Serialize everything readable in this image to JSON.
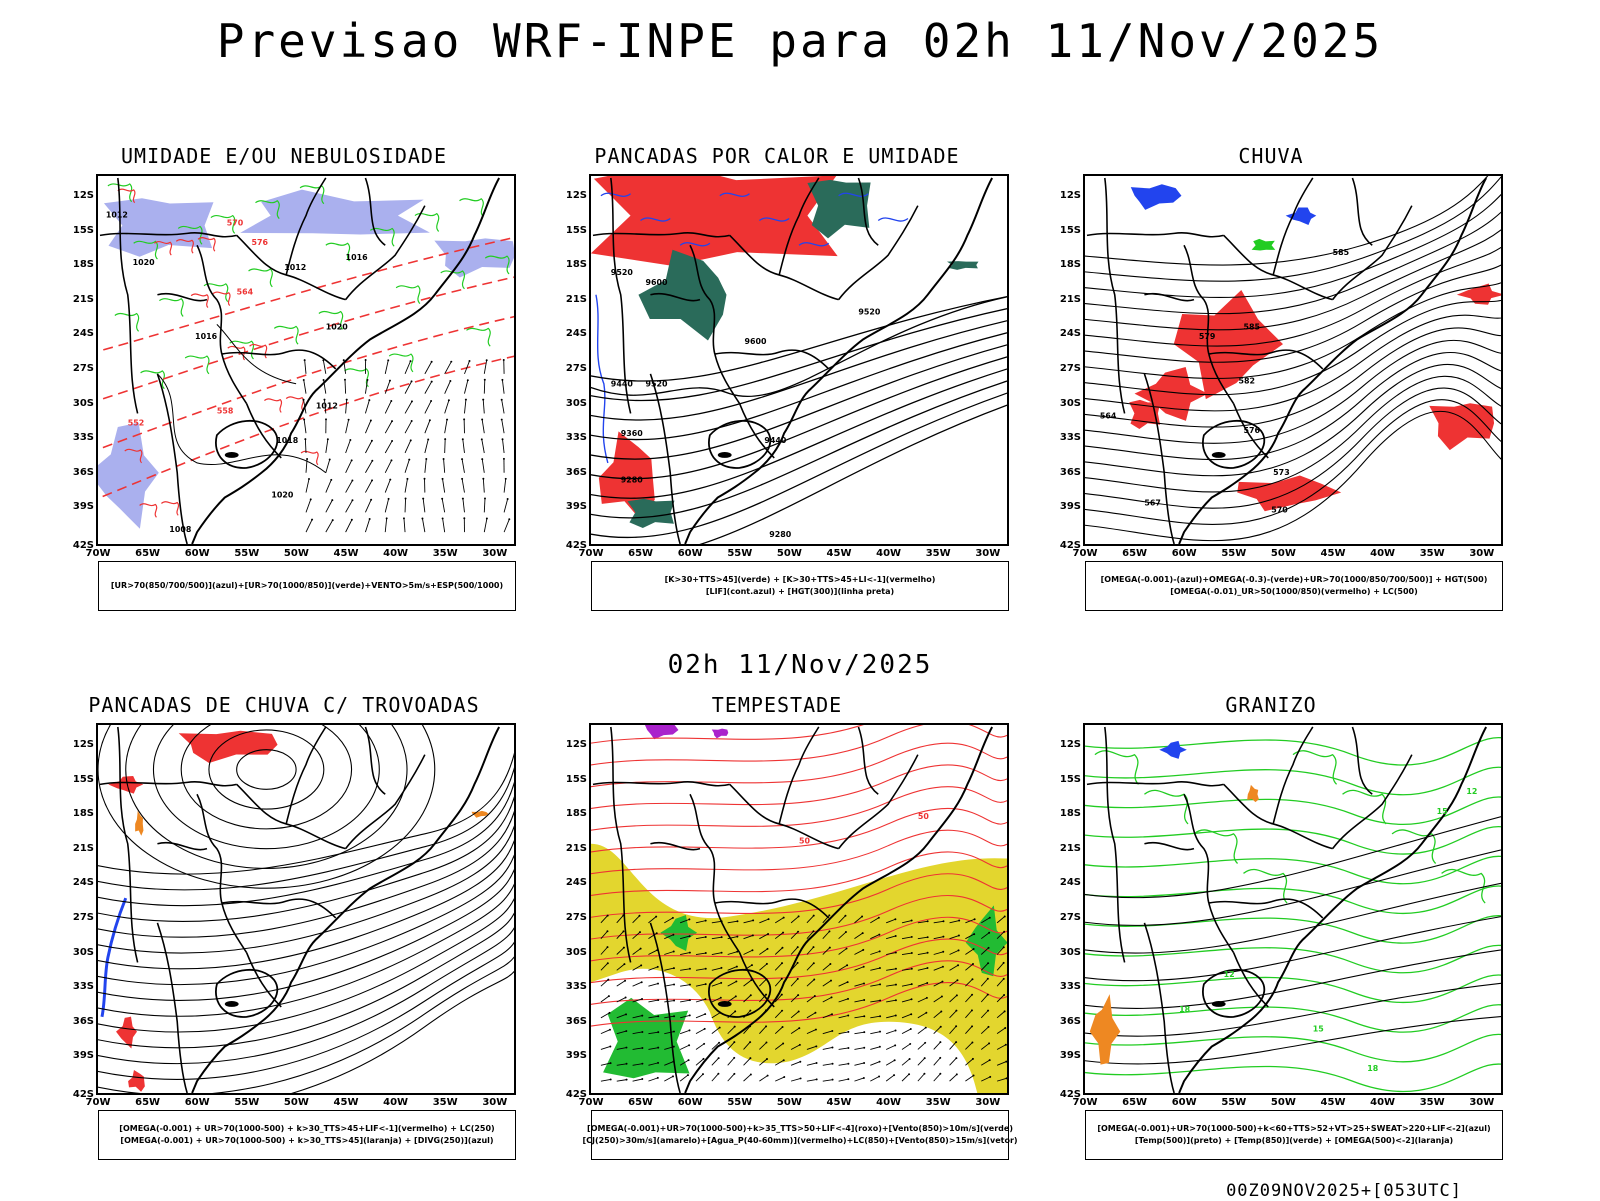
{
  "header": {
    "title": "Previsao WRF-INPE  para 02h 11/Nov/2025",
    "mid_title": "02h 11/Nov/2025",
    "footer": "00Z09NOV2025+[053UTC]"
  },
  "axes": {
    "latitudes": [
      "12S",
      "15S",
      "18S",
      "21S",
      "24S",
      "27S",
      "30S",
      "33S",
      "36S",
      "39S",
      "42S"
    ],
    "longitudes": [
      "70W",
      "65W",
      "60W",
      "55W",
      "50W",
      "45W",
      "40W",
      "35W",
      "30W"
    ]
  },
  "panels": [
    {
      "id": "umidade",
      "title": "UMIDADE E/OU NEBULOSIDADE",
      "legend": [
        "[UR>70(850/700/500)](azul)+[UR>70(1000/850)](verde)+VENTO>5m/s+ESP(500/1000)"
      ],
      "labels": [
        "1012",
        "1020",
        "1016",
        "1012",
        "1020",
        "576",
        "570",
        "564",
        "558",
        "552",
        "1008",
        "1018",
        "1012",
        "1020",
        "1016"
      ]
    },
    {
      "id": "pancadas-calor",
      "title": "PANCADAS POR CALOR E UMIDADE",
      "legend": [
        "[K>30+TTS>45](verde) + [K>30+TTS>45+LI<-1](vermelho)",
        "[LIF](cont.azul) + [HGT(300)](linha preta)"
      ],
      "labels": [
        "9520",
        "9600",
        "9600",
        "9520",
        "9440",
        "9520",
        "9440",
        "9360",
        "9280",
        "9280"
      ]
    },
    {
      "id": "chuva",
      "title": "CHUVA",
      "legend": [
        "[OMEGA(-0.001)-(azul)+OMEGA(-0.3)-(verde)+UR>70(1000/850/700/500)] + HGT(500)",
        "[OMEGA(-0.01)_UR>50(1000/850)(vermelho) + LC(500)"
      ],
      "labels": [
        "585",
        "585",
        "582",
        "579",
        "576",
        "573",
        "570",
        "567",
        "564"
      ]
    },
    {
      "id": "trovoadas",
      "title": "PANCADAS DE CHUVA C/ TROVOADAS",
      "legend": [
        "[OMEGA(-0.001) + UR>70(1000-500) + k>30_TTS>45+LIF<-1](vermelho) + LC(250)",
        "[OMEGA(-0.001) + UR>70(1000-500) + k>30_TTS>45](laranja) + [DIVG(250)](azul)"
      ],
      "labels": []
    },
    {
      "id": "tempestade",
      "title": "TEMPESTADE",
      "legend": [
        "[OMEGA(-0.001)+UR>70(1000-500)+k>35_TTS>50+LIF<-4](roxo)+[Vento(850)>10m/s](verde)",
        "[CJ(250)>30m/s](amarelo)+[Agua_P(40-60mm)](vermelho)+LC(850)+[Vento(850)>15m/s](vetor)"
      ],
      "labels": [
        "50",
        "50"
      ]
    },
    {
      "id": "granizo",
      "title": "GRANIZO",
      "legend": [
        "[OMEGA(-0.001)+UR>70(1000-500)+k<60+TTS>52+VT>25+SWEAT>220+LIF<-2](azul)",
        "[Temp(500)](preto) + [Temp(850)](verde) + [OMEGA(500)<-2](laranja)"
      ],
      "labels": [
        "12",
        "15",
        "18",
        "15",
        "18",
        "12"
      ]
    }
  ],
  "colors": {
    "blue": "#2244ee",
    "green": "#22cc22",
    "red": "#ee3333",
    "darkgreen": "#2a6b5a",
    "lavender": "#aab0ee",
    "orange": "#ee8822",
    "purple": "#aa22cc",
    "yellow": "#e3d62e",
    "brightgreen": "#22bb33"
  }
}
